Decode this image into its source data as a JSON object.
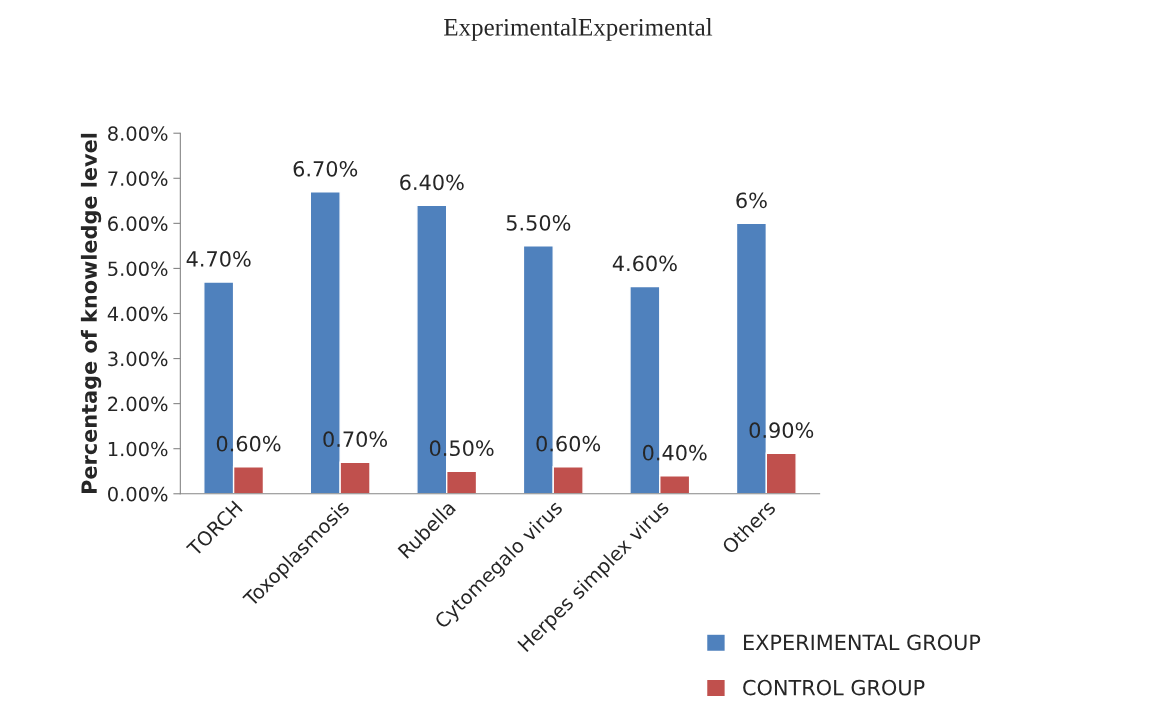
{
  "chart_data": {
    "type": "bar",
    "title": "ExperimentalExperimental",
    "ylabel": "Percentage of knowledge level",
    "categories": [
      "TORCH",
      "Toxoplasmosis",
      "Rubella",
      "Cytomegalo virus",
      "Herpes simplex virus",
      "Others"
    ],
    "series": [
      {
        "name": "EXPERIMENTAL GROUP",
        "color": "#4f81bd",
        "values": [
          4.7,
          6.7,
          6.4,
          5.5,
          4.6,
          6
        ],
        "value_labels": [
          "4.70%",
          "6.70%",
          "6.40%",
          "5.50%",
          "4.60%",
          "6%"
        ]
      },
      {
        "name": "CONTROL GROUP",
        "color": "#c0504d",
        "values": [
          0.6,
          0.7,
          0.5,
          0.6,
          0.4,
          0.9
        ],
        "value_labels": [
          "0.60%",
          "0.70%",
          "0.50%",
          "0.60%",
          "0.40%",
          "0.90%"
        ]
      }
    ],
    "ylim": [
      0,
      8
    ],
    "yticks": [
      {
        "value": 0,
        "label": "0.00%"
      },
      {
        "value": 1,
        "label": "1.00%"
      },
      {
        "value": 2,
        "label": "2.00%"
      },
      {
        "value": 3,
        "label": "3.00%"
      },
      {
        "value": 4,
        "label": "4.00%"
      },
      {
        "value": 5,
        "label": "5.00%"
      },
      {
        "value": 6,
        "label": "6.00%"
      },
      {
        "value": 7,
        "label": "7.00%"
      },
      {
        "value": 8,
        "label": "8.00%"
      }
    ],
    "grid": false,
    "legend": "bottom right"
  }
}
